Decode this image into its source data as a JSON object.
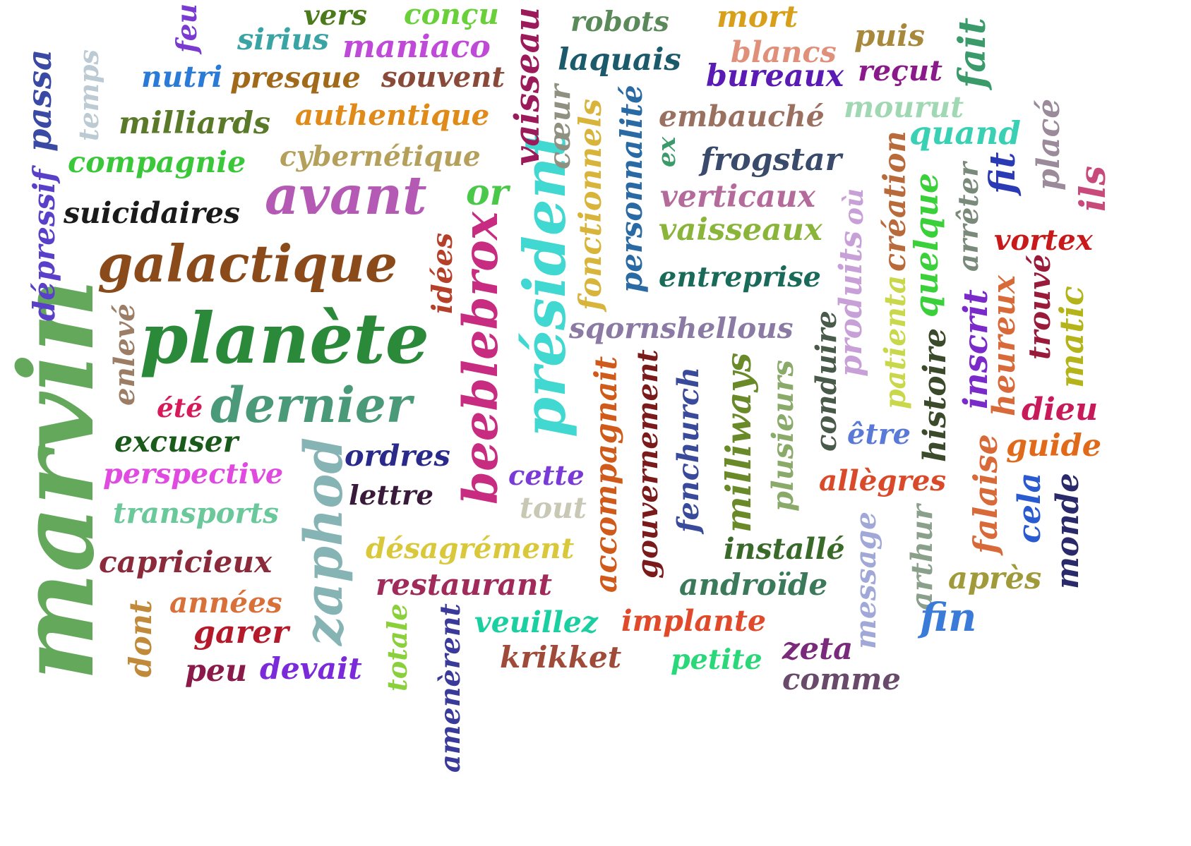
{
  "words": [
    {
      "text": "marvin",
      "color": "#64a85c",
      "rotate": true
    },
    {
      "text": "passa",
      "color": "#3a4aa4",
      "rotate": true
    },
    {
      "text": "temps",
      "color": "#bccbd3",
      "rotate": true
    },
    {
      "text": "feu",
      "color": "#7a3ad0",
      "rotate": true
    },
    {
      "text": "dépressif",
      "color": "#5a40c8",
      "rotate": true
    },
    {
      "text": "enlevé",
      "color": "#9c7d66",
      "rotate": true
    },
    {
      "text": "dont",
      "color": "#c08a3a",
      "rotate": true
    },
    {
      "text": "zaphod",
      "color": "#86b4b4",
      "rotate": true
    },
    {
      "text": "idées",
      "color": "#b5402a",
      "rotate": true
    },
    {
      "text": "beeblebrox",
      "color": "#c82c80",
      "rotate": true
    },
    {
      "text": "président",
      "color": "#40d8d0",
      "rotate": true
    },
    {
      "text": "vaisseau",
      "color": "#9a1a5a",
      "rotate": true
    },
    {
      "text": "cœur",
      "color": "#909080",
      "rotate": true
    },
    {
      "text": "fonctionnels",
      "color": "#d8b43a",
      "rotate": true
    },
    {
      "text": "personnalité",
      "color": "#2a6aa4",
      "rotate": true
    },
    {
      "text": "ex",
      "color": "#3a9a6a",
      "rotate": true
    },
    {
      "text": "totale",
      "color": "#8ad03a",
      "rotate": true
    },
    {
      "text": "amenèrent",
      "color": "#3a3a9a",
      "rotate": true
    },
    {
      "text": "accompagnait",
      "color": "#d05a1a",
      "rotate": true
    },
    {
      "text": "gouvernement",
      "color": "#7a1a1a",
      "rotate": true
    },
    {
      "text": "fenchurch",
      "color": "#3a4a9a",
      "rotate": true
    },
    {
      "text": "milliways",
      "color": "#6a8a2a",
      "rotate": true
    },
    {
      "text": "plusieurs",
      "color": "#8aaa6a",
      "rotate": true
    },
    {
      "text": "conduire",
      "color": "#4a5a4a",
      "rotate": true
    },
    {
      "text": "produits",
      "color": "#c8a0d8",
      "rotate": true
    },
    {
      "text": "où",
      "color": "#c8a0d8",
      "rotate": true
    },
    {
      "text": "création",
      "color": "#b86a3a",
      "rotate": true
    },
    {
      "text": "patienta",
      "color": "#c8d84a",
      "rotate": true
    },
    {
      "text": "quelque",
      "color": "#3ad03a",
      "rotate": true
    },
    {
      "text": "arrêter",
      "color": "#7a8a7a",
      "rotate": true
    },
    {
      "text": "fit",
      "color": "#2a3ab4",
      "rotate": true
    },
    {
      "text": "placé",
      "color": "#9a8a9a",
      "rotate": true
    },
    {
      "text": "ils",
      "color": "#c84a7a",
      "rotate": true
    },
    {
      "text": "fait",
      "color": "#3a9a6a",
      "rotate": true
    },
    {
      "text": "histoire",
      "color": "#3a4a2a",
      "rotate": true
    },
    {
      "text": "inscrit",
      "color": "#7a2ac8",
      "rotate": true
    },
    {
      "text": "heureux",
      "color": "#d86a3a",
      "rotate": true
    },
    {
      "text": "trouvé",
      "color": "#9a1a3a",
      "rotate": true
    },
    {
      "text": "matic",
      "color": "#b4b41a",
      "rotate": true
    },
    {
      "text": "message",
      "color": "#a0a8d8",
      "rotate": true
    },
    {
      "text": "arthur",
      "color": "#8aa08a",
      "rotate": true
    },
    {
      "text": "falaise",
      "color": "#d86a3a",
      "rotate": true
    },
    {
      "text": "cela",
      "color": "#2a5ad0",
      "rotate": true
    },
    {
      "text": "monde",
      "color": "#2a2a6a",
      "rotate": true
    },
    {
      "text": "vers",
      "color": "#4a7a1a",
      "rotate": false
    },
    {
      "text": "conçu",
      "color": "#6ad03a",
      "rotate": false
    },
    {
      "text": "sirius",
      "color": "#3aa4a4",
      "rotate": false
    },
    {
      "text": "maniaco",
      "color": "#c04ad8",
      "rotate": false
    },
    {
      "text": "nutri",
      "color": "#2a7ad8",
      "rotate": false
    },
    {
      "text": "presque",
      "color": "#a06a1a",
      "rotate": false
    },
    {
      "text": "souvent",
      "color": "#8a4a3a",
      "rotate": false
    },
    {
      "text": "robots",
      "color": "#5a8a5a",
      "rotate": false
    },
    {
      "text": "laquais",
      "color": "#1a5a6a",
      "rotate": false
    },
    {
      "text": "mort",
      "color": "#d8a01a",
      "rotate": false
    },
    {
      "text": "blancs",
      "color": "#e0907a",
      "rotate": false
    },
    {
      "text": "bureaux",
      "color": "#5a1ab4",
      "rotate": false
    },
    {
      "text": "puis",
      "color": "#a8883a",
      "rotate": false
    },
    {
      "text": "reçut",
      "color": "#8a1a8a",
      "rotate": false
    },
    {
      "text": "milliards",
      "color": "#5a7a2a",
      "rotate": false
    },
    {
      "text": "authentique",
      "color": "#e08a1a",
      "rotate": false
    },
    {
      "text": "embauché",
      "color": "#9a7060",
      "rotate": false
    },
    {
      "text": "mourut",
      "color": "#a0d8b4",
      "rotate": false
    },
    {
      "text": "quand",
      "color": "#3ad0b4",
      "rotate": false
    },
    {
      "text": "compagnie",
      "color": "#3ac83a",
      "rotate": false
    },
    {
      "text": "cybernétique",
      "color": "#b4a05a",
      "rotate": false
    },
    {
      "text": "frogstar",
      "color": "#3a4a6a",
      "rotate": false
    },
    {
      "text": "avant",
      "color": "#b45ab4",
      "rotate": false
    },
    {
      "text": "or",
      "color": "#4ac84a",
      "rotate": false
    },
    {
      "text": "verticaux",
      "color": "#b46a9a",
      "rotate": false
    },
    {
      "text": "suicidaires",
      "color": "#1a1a1a",
      "rotate": false
    },
    {
      "text": "vaisseaux",
      "color": "#8ab43a",
      "rotate": false
    },
    {
      "text": "vortex",
      "color": "#c81a1a",
      "rotate": false
    },
    {
      "text": "galactique",
      "color": "#8a4a1a",
      "rotate": false
    },
    {
      "text": "entreprise",
      "color": "#1a6a5a",
      "rotate": false
    },
    {
      "text": "planète",
      "color": "#2a8a3a",
      "rotate": false
    },
    {
      "text": "sqornshellous",
      "color": "#8a7aa4",
      "rotate": false
    },
    {
      "text": "été",
      "color": "#d81a5a",
      "rotate": false
    },
    {
      "text": "dernier",
      "color": "#4a9a7a",
      "rotate": false
    },
    {
      "text": "dieu",
      "color": "#c81a5a",
      "rotate": false
    },
    {
      "text": "excuser",
      "color": "#1a5a1a",
      "rotate": false
    },
    {
      "text": "ordres",
      "color": "#2a2a8a",
      "rotate": false
    },
    {
      "text": "être",
      "color": "#5a7ad8",
      "rotate": false
    },
    {
      "text": "guide",
      "color": "#e06a1a",
      "rotate": false
    },
    {
      "text": "perspective",
      "color": "#e04ae0",
      "rotate": false
    },
    {
      "text": "cette",
      "color": "#7a3ad8",
      "rotate": false
    },
    {
      "text": "allègres",
      "color": "#d84a2a",
      "rotate": false
    },
    {
      "text": "lettre",
      "color": "#3a1a3a",
      "rotate": false
    },
    {
      "text": "transports",
      "color": "#6ac89a",
      "rotate": false
    },
    {
      "text": "tout",
      "color": "#c8c8b4",
      "rotate": false
    },
    {
      "text": "installé",
      "color": "#3a6a2a",
      "rotate": false
    },
    {
      "text": "désagrément",
      "color": "#d8c83a",
      "rotate": false
    },
    {
      "text": "capricieux",
      "color": "#8a2a3a",
      "rotate": false
    },
    {
      "text": "androïde",
      "color": "#3a7a5a",
      "rotate": false
    },
    {
      "text": "après",
      "color": "#a09a3a",
      "rotate": false
    },
    {
      "text": "restaurant",
      "color": "#a02a5a",
      "rotate": false
    },
    {
      "text": "années",
      "color": "#d8703a",
      "rotate": false
    },
    {
      "text": "veuillez",
      "color": "#1ad0a0",
      "rotate": false
    },
    {
      "text": "implante",
      "color": "#e04a2a",
      "rotate": false
    },
    {
      "text": "fin",
      "color": "#3a7ad8",
      "rotate": false
    },
    {
      "text": "garer",
      "color": "#b41a2a",
      "rotate": false
    },
    {
      "text": "krikket",
      "color": "#a04a3a",
      "rotate": false
    },
    {
      "text": "zeta",
      "color": "#7a2a7a",
      "rotate": false
    },
    {
      "text": "petite",
      "color": "#2ad87a",
      "rotate": false
    },
    {
      "text": "peu",
      "color": "#8a1a4a",
      "rotate": false
    },
    {
      "text": "devait",
      "color": "#7a2ad8",
      "rotate": false
    },
    {
      "text": "comme",
      "color": "#6a4a6a",
      "rotate": false
    }
  ]
}
